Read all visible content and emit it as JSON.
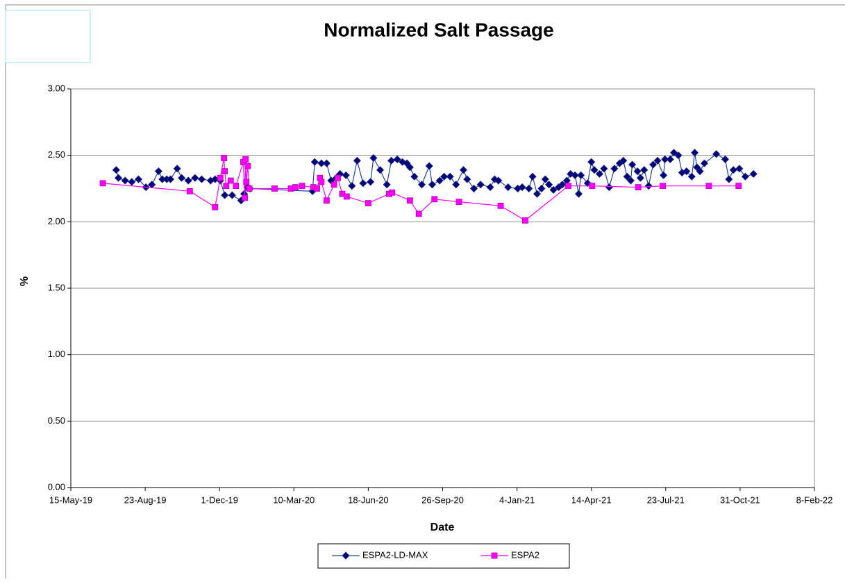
{
  "chart_data": {
    "type": "line",
    "title": "Normalized Salt Passage",
    "x_label": "Date",
    "y_label": "%",
    "xlim": [
      "2019-05-15",
      "2022-02-08"
    ],
    "xticks": [
      {
        "value": "2019-05-15",
        "label": "15-May-19"
      },
      {
        "value": "2019-08-23",
        "label": "23-Aug-19"
      },
      {
        "value": "2019-12-01",
        "label": "1-Dec-19"
      },
      {
        "value": "2020-03-10",
        "label": "10-Mar-20"
      },
      {
        "value": "2020-06-18",
        "label": "18-Jun-20"
      },
      {
        "value": "2020-09-26",
        "label": "26-Sep-20"
      },
      {
        "value": "2021-01-04",
        "label": "4-Jan-21"
      },
      {
        "value": "2021-04-14",
        "label": "14-Apr-21"
      },
      {
        "value": "2021-07-23",
        "label": "23-Jul-21"
      },
      {
        "value": "2021-10-31",
        "label": "31-Oct-21"
      },
      {
        "value": "2022-02-08",
        "label": "8-Feb-22"
      }
    ],
    "ylim": [
      0,
      3
    ],
    "yticks": [
      {
        "value": 0,
        "label": "0.00"
      },
      {
        "value": 0.5,
        "label": "0.50"
      },
      {
        "value": 1,
        "label": "1.00"
      },
      {
        "value": 1.5,
        "label": "1.50"
      },
      {
        "value": 2,
        "label": "2.00"
      },
      {
        "value": 2.5,
        "label": "2.50"
      },
      {
        "value": 3,
        "label": "3.00"
      }
    ],
    "grid": true,
    "legend": "bottom",
    "series": [
      {
        "name": "ESPA2-LD-MAX",
        "color": "#000080",
        "marker": "diamond",
        "x": [
          "2019-07-15",
          "2019-07-18",
          "2019-07-27",
          "2019-08-05",
          "2019-08-14",
          "2019-08-24",
          "2019-09-01",
          "2019-09-10",
          "2019-09-15",
          "2019-09-21",
          "2019-09-26",
          "2019-10-05",
          "2019-10-11",
          "2019-10-20",
          "2019-10-29",
          "2019-11-07",
          "2019-11-19",
          "2019-11-25",
          "2019-12-02",
          "2019-12-08",
          "2019-12-18",
          "2019-12-30",
          "2020-01-03",
          "2020-01-07",
          "2020-01-11",
          "2020-04-04",
          "2020-04-07",
          "2020-04-16",
          "2020-04-23",
          "2020-04-29",
          "2020-05-06",
          "2020-05-11",
          "2020-05-19",
          "2020-05-27",
          "2020-06-03",
          "2020-06-11",
          "2020-06-21",
          "2020-06-25",
          "2020-07-04",
          "2020-07-13",
          "2020-07-19",
          "2020-07-27",
          "2020-08-03",
          "2020-08-09",
          "2020-08-13",
          "2020-08-19",
          "2020-08-29",
          "2020-09-08",
          "2020-09-12",
          "2020-09-22",
          "2020-09-28",
          "2020-10-06",
          "2020-10-14",
          "2020-10-24",
          "2020-10-29",
          "2020-11-07",
          "2020-11-16",
          "2020-11-29",
          "2020-12-05",
          "2020-12-10",
          "2020-12-23",
          "2021-01-05",
          "2021-01-11",
          "2021-01-20",
          "2021-01-25",
          "2021-01-31",
          "2021-02-06",
          "2021-02-11",
          "2021-02-16",
          "2021-02-22",
          "2021-03-01",
          "2021-03-06",
          "2021-03-12",
          "2021-03-17",
          "2021-03-23",
          "2021-03-28",
          "2021-03-31",
          "2021-04-09",
          "2021-04-14",
          "2021-04-18",
          "2021-04-25",
          "2021-05-01",
          "2021-05-08",
          "2021-05-15",
          "2021-05-22",
          "2021-05-27",
          "2021-06-01",
          "2021-06-06",
          "2021-06-08",
          "2021-06-15",
          "2021-06-19",
          "2021-06-24",
          "2021-06-30",
          "2021-07-06",
          "2021-07-12",
          "2021-07-20",
          "2021-07-22",
          "2021-07-29",
          "2021-08-03",
          "2021-08-09",
          "2021-08-14",
          "2021-08-20",
          "2021-08-27",
          "2021-08-31",
          "2021-09-03",
          "2021-09-07",
          "2021-09-13",
          "2021-09-29",
          "2021-10-11",
          "2021-10-16",
          "2021-10-22",
          "2021-10-30",
          "2021-11-07",
          "2021-11-18"
        ],
        "values": [
          2.39,
          2.33,
          2.31,
          2.3,
          2.32,
          2.26,
          2.28,
          2.38,
          2.32,
          2.32,
          2.32,
          2.4,
          2.33,
          2.31,
          2.33,
          2.32,
          2.31,
          2.32,
          2.31,
          2.2,
          2.2,
          2.16,
          2.21,
          2.26,
          2.25,
          2.23,
          2.45,
          2.44,
          2.44,
          2.31,
          2.33,
          2.36,
          2.35,
          2.27,
          2.46,
          2.29,
          2.3,
          2.48,
          2.39,
          2.28,
          2.46,
          2.47,
          2.45,
          2.44,
          2.41,
          2.34,
          2.28,
          2.42,
          2.28,
          2.31,
          2.34,
          2.34,
          2.28,
          2.39,
          2.32,
          2.25,
          2.28,
          2.26,
          2.32,
          2.31,
          2.26,
          2.25,
          2.26,
          2.25,
          2.34,
          2.21,
          2.25,
          2.32,
          2.28,
          2.24,
          2.26,
          2.28,
          2.31,
          2.36,
          2.35,
          2.21,
          2.35,
          2.29,
          2.45,
          2.39,
          2.36,
          2.4,
          2.26,
          2.4,
          2.44,
          2.46,
          2.34,
          2.31,
          2.43,
          2.38,
          2.33,
          2.39,
          2.27,
          2.43,
          2.46,
          2.35,
          2.47,
          2.47,
          2.52,
          2.5,
          2.37,
          2.38,
          2.34,
          2.52,
          2.41,
          2.38,
          2.44,
          2.51,
          2.47,
          2.32,
          2.39,
          2.4,
          2.34,
          2.36
        ]
      },
      {
        "name": "ESPA2",
        "color": "#ff00ff",
        "marker": "square",
        "x": [
          "2019-06-27",
          "2019-10-22",
          "2019-11-25",
          "2019-12-02",
          "2019-12-07",
          "2019-12-08",
          "2019-12-10",
          "2019-12-16",
          "2019-12-23",
          "2020-01-02",
          "2020-01-04",
          "2020-01-05",
          "2020-01-06",
          "2020-01-08",
          "2020-01-10",
          "2020-02-13",
          "2020-03-06",
          "2020-03-12",
          "2020-03-21",
          "2020-04-05",
          "2020-04-10",
          "2020-04-14",
          "2020-04-16",
          "2020-04-23",
          "2020-05-03",
          "2020-05-08",
          "2020-05-14",
          "2020-05-20",
          "2020-06-18",
          "2020-07-16",
          "2020-07-20",
          "2020-08-13",
          "2020-08-25",
          "2020-09-15",
          "2020-10-18",
          "2020-12-13",
          "2021-01-15",
          "2021-03-14",
          "2021-04-15",
          "2021-06-16",
          "2021-07-19",
          "2021-09-19",
          "2021-10-29"
        ],
        "values": [
          2.29,
          2.23,
          2.11,
          2.33,
          2.48,
          2.38,
          2.27,
          2.31,
          2.27,
          2.45,
          2.18,
          2.47,
          2.3,
          2.42,
          2.25,
          2.25,
          2.25,
          2.26,
          2.27,
          2.26,
          2.25,
          2.33,
          2.3,
          2.16,
          2.28,
          2.33,
          2.21,
          2.19,
          2.14,
          2.21,
          2.22,
          2.16,
          2.06,
          2.17,
          2.15,
          2.12,
          2.01,
          2.27,
          2.27,
          2.26,
          2.27,
          2.27,
          2.27
        ]
      }
    ]
  }
}
